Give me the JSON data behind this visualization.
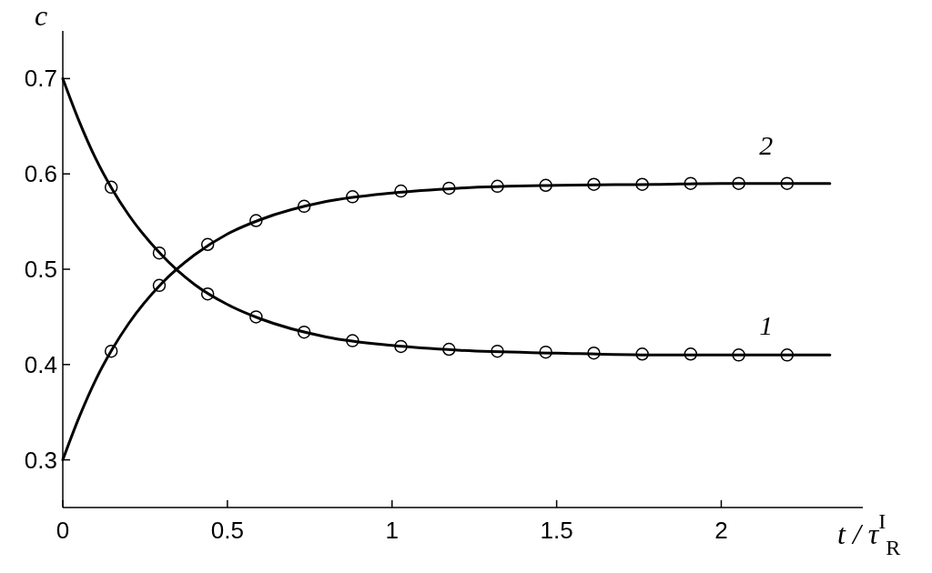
{
  "chart_data": {
    "type": "line",
    "xlabel": "t / τ$^{I}$$_{R}$",
    "ylabel": "c",
    "xlim": [
      0,
      2.43
    ],
    "ylim": [
      0.25,
      0.75
    ],
    "xticks": [
      0,
      {
        "value": 0.5,
        "label": "0.5"
      },
      1,
      {
        "value": 1.5,
        "label": "1.5"
      },
      2
    ],
    "yticks": [
      {
        "value": 0.3,
        "label": "0.3"
      },
      {
        "value": 0.4,
        "label": "0.4"
      },
      {
        "value": 0.5,
        "label": "0.5"
      },
      {
        "value": 0.6,
        "label": "0.6"
      },
      {
        "value": 0.7,
        "label": "0.7"
      }
    ],
    "grid": false,
    "series": [
      {
        "name": "1",
        "type": "line",
        "color": "#000000",
        "marker": "none",
        "line_style": "solid",
        "x": [
          0,
          0.05,
          0.1,
          0.15,
          0.2,
          0.3,
          0.4,
          0.5,
          0.6,
          0.8,
          1.0,
          1.2,
          1.5,
          1.8,
          2.0,
          2.33
        ],
        "values": [
          0.7,
          0.655,
          0.616,
          0.584,
          0.557,
          0.515,
          0.484,
          0.463,
          0.448,
          0.429,
          0.42,
          0.415,
          0.412,
          0.41,
          0.41,
          0.41
        ]
      },
      {
        "name": "2",
        "type": "line",
        "color": "#000000",
        "marker": "none",
        "line_style": "solid",
        "x": [
          0,
          0.05,
          0.1,
          0.15,
          0.2,
          0.3,
          0.4,
          0.5,
          0.6,
          0.8,
          1.0,
          1.2,
          1.5,
          1.8,
          2.0,
          2.33
        ],
        "values": [
          0.3,
          0.345,
          0.384,
          0.416,
          0.443,
          0.485,
          0.515,
          0.537,
          0.552,
          0.571,
          0.58,
          0.585,
          0.588,
          0.589,
          0.59,
          0.59
        ]
      },
      {
        "type": "scatter",
        "color": "#000000",
        "marker": "circle",
        "x": [
          0.147,
          0.293,
          0.44,
          0.587,
          0.733,
          0.88,
          1.027,
          1.173,
          1.32,
          1.467,
          1.613,
          1.76,
          1.907,
          2.053,
          2.2
        ],
        "values": [
          0.586,
          0.517,
          0.474,
          0.45,
          0.434,
          0.425,
          0.419,
          0.416,
          0.414,
          0.413,
          0.412,
          0.411,
          0.411,
          0.41,
          0.41
        ]
      },
      {
        "type": "scatter",
        "color": "#000000",
        "marker": "circle",
        "x": [
          0.147,
          0.293,
          0.44,
          0.587,
          0.733,
          0.88,
          1.027,
          1.173,
          1.32,
          1.467,
          1.613,
          1.76,
          1.907,
          2.053,
          2.2
        ],
        "values": [
          0.414,
          0.483,
          0.526,
          0.551,
          0.566,
          0.576,
          0.582,
          0.585,
          0.587,
          0.588,
          0.589,
          0.589,
          0.59,
          0.59,
          0.59
        ]
      }
    ]
  }
}
